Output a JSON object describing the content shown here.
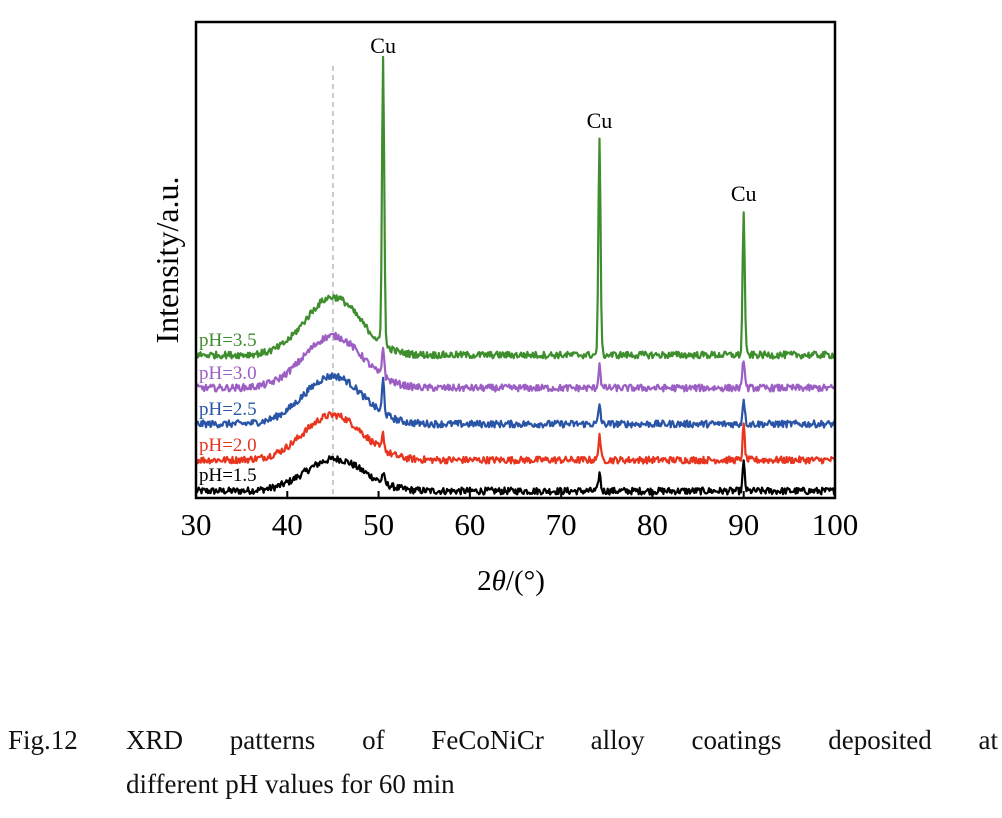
{
  "chart_data": {
    "type": "line",
    "xlabel_prefix": "2",
    "xlabel_var": "θ",
    "xlabel_suffix": "/(°)",
    "ylabel": "Intensity/a.u.",
    "xlim": [
      30,
      100
    ],
    "xticks": [
      30,
      40,
      50,
      60,
      70,
      80,
      90,
      100
    ],
    "grid": false,
    "reference_line_x": 45,
    "series": [
      {
        "name": "pH=1.5",
        "color": "#000000",
        "offset": 0,
        "baseline": 2,
        "hump": {
          "center": 45.2,
          "width": 3.2,
          "height": 32
        },
        "peaks": [
          {
            "x": 50.5,
            "h": 10
          },
          {
            "x": 74.2,
            "h": 18
          },
          {
            "x": 90.0,
            "h": 28
          }
        ]
      },
      {
        "name": "pH=2.0",
        "color": "#e8351f",
        "offset": 30,
        "baseline": 3,
        "hump": {
          "center": 45.0,
          "width": 3.2,
          "height": 45
        },
        "peaks": [
          {
            "x": 50.5,
            "h": 16
          },
          {
            "x": 74.2,
            "h": 26
          },
          {
            "x": 90.0,
            "h": 34
          }
        ]
      },
      {
        "name": "pH=2.5",
        "color": "#2a55a7",
        "offset": 66,
        "baseline": 3,
        "hump": {
          "center": 45.0,
          "width": 3.2,
          "height": 48
        },
        "peaks": [
          {
            "x": 50.5,
            "h": 34
          },
          {
            "x": 74.2,
            "h": 20
          },
          {
            "x": 90.0,
            "h": 26
          }
        ]
      },
      {
        "name": "pH=3.0",
        "color": "#9c5fc4",
        "offset": 102,
        "baseline": 3,
        "hump": {
          "center": 45.0,
          "width": 3.2,
          "height": 52
        },
        "peaks": [
          {
            "x": 50.5,
            "h": 30
          },
          {
            "x": 74.2,
            "h": 24
          },
          {
            "x": 90.0,
            "h": 30
          }
        ]
      },
      {
        "name": "pH=3.5",
        "color": "#3e8e2e",
        "offset": 135,
        "baseline": 3,
        "hump": {
          "center": 45.0,
          "width": 3.0,
          "height": 58
        },
        "peaks": [
          {
            "x": 50.5,
            "h": 290
          },
          {
            "x": 74.2,
            "h": 215
          },
          {
            "x": 90.0,
            "h": 142
          }
        ]
      }
    ],
    "annotations": [
      {
        "text": "Cu",
        "x": 50.5
      },
      {
        "text": "Cu",
        "x": 74.2
      },
      {
        "text": "Cu",
        "x": 90.0
      }
    ]
  },
  "caption": {
    "number": "Fig.12",
    "line1": "XRD patterns of FeCoNiCr alloy coatings deposited at",
    "line2": "different pH values for 60 min"
  }
}
